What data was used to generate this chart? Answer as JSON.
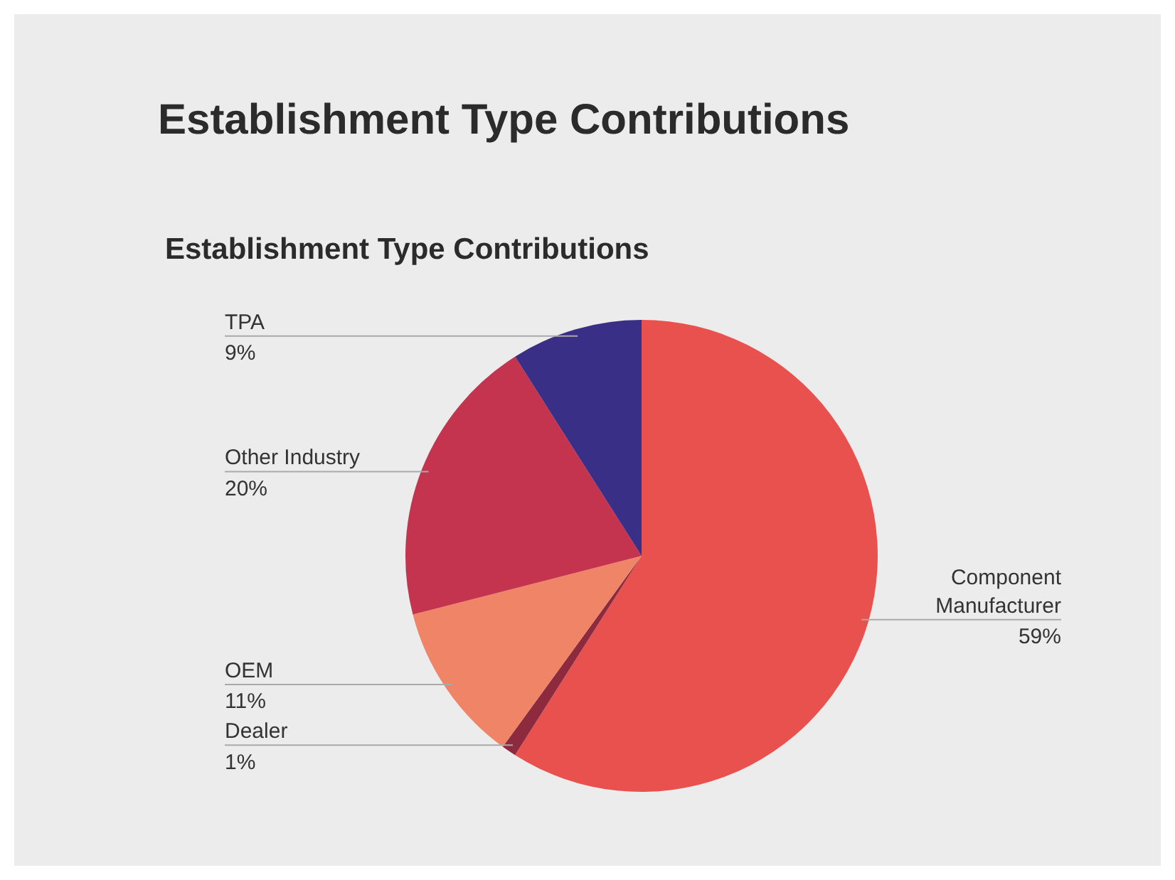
{
  "chart_data": {
    "type": "pie",
    "title": "Establishment Type Contributions",
    "subtitle": "Establishment Type Contributions",
    "categories": [
      "Component Manufacturer",
      "Dealer",
      "OEM",
      "Other Industry",
      "TPA"
    ],
    "values": [
      59,
      1,
      11,
      20,
      9
    ],
    "value_labels": [
      "59%",
      "1%",
      "11%",
      "20%",
      "9%"
    ],
    "colors": [
      "#e8514d",
      "#8e2a3e",
      "#f08466",
      "#c4344f",
      "#3a2f86"
    ],
    "legend": false
  }
}
